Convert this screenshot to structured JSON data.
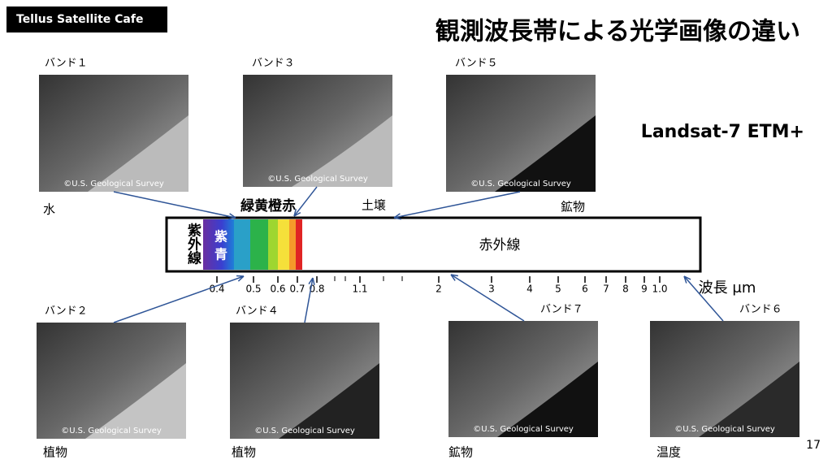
{
  "header": {
    "badge": "Tellus Satellite Cafe",
    "title": "観測波長帯による光学画像の違い",
    "subtitle": "Landsat-7 ETM+",
    "page": "17"
  },
  "credit": "©U.S. Geological Survey",
  "bands": [
    {
      "label": "バンド１",
      "caption": "水"
    },
    {
      "label": "バンド３"
    },
    {
      "label": "バンド５",
      "caption": "鉱物"
    },
    {
      "label": "バンド２",
      "caption": "植物"
    },
    {
      "label": "バンド４",
      "caption": "植物"
    },
    {
      "label": "バンド７",
      "caption": "鉱物"
    },
    {
      "label": "バンド６",
      "caption": "温度"
    }
  ],
  "annotations": [
    "土壌"
  ],
  "spectrum": {
    "ultraviolet": "紫外線",
    "violet": "紫",
    "blue": "青",
    "visible": "緑黄橙赤",
    "infrared": "赤外線",
    "axis_label": "波長 μm",
    "ticks": [
      "0.4",
      "0.5",
      "0.6",
      "0.7",
      "0.8",
      "1.1",
      "2",
      "3",
      "4",
      "5",
      "6",
      "7",
      "8",
      "9",
      "1.0"
    ]
  }
}
